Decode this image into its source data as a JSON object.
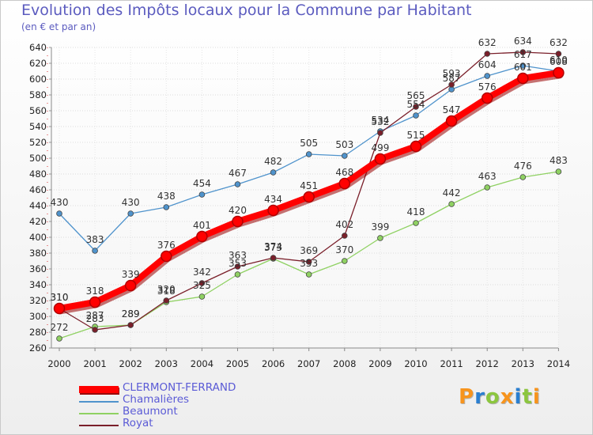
{
  "chart_data": {
    "type": "line",
    "title": "Evolution des Impôts locaux pour la Commune par Habitant",
    "subtitle": "(en € et par an)",
    "xlabel": "",
    "ylabel": "",
    "x": [
      "2000",
      "2001",
      "2002",
      "2003",
      "2004",
      "2005",
      "2006",
      "2007",
      "2008",
      "2009",
      "2010",
      "2011",
      "2012",
      "2013",
      "2014"
    ],
    "ylim": [
      260,
      640
    ],
    "ytick_step": 20,
    "grid": true,
    "legend_position": "bottom-left",
    "series": [
      {
        "name": "Chamalières",
        "color": "#4f93cc",
        "values": [
          430,
          383,
          430,
          438,
          454,
          467,
          482,
          505,
          503,
          534,
          554,
          587,
          604,
          617,
          610
        ]
      },
      {
        "name": "Beaumont",
        "color": "#8fd162",
        "values": [
          272,
          287,
          289,
          318,
          325,
          353,
          373,
          353,
          370,
          399,
          418,
          442,
          463,
          476,
          483
        ]
      },
      {
        "name": "Royat",
        "color": "#7a1f2a",
        "values": [
          310,
          283,
          289,
          320,
          342,
          363,
          374,
          369,
          402,
          532,
          565,
          593,
          632,
          634,
          632
        ]
      },
      {
        "name": "CLERMONT-FERRAND",
        "color": "#ff0000",
        "values": [
          310,
          318,
          339,
          376,
          401,
          420,
          434,
          451,
          468,
          499,
          515,
          547,
          576,
          601,
          608
        ]
      }
    ]
  },
  "legend": {
    "items": [
      {
        "label": "CLERMONT-FERRAND",
        "color": "#ff0000"
      },
      {
        "label": "Chamalières",
        "color": "#4f93cc"
      },
      {
        "label": "Beaumont",
        "color": "#8fd162"
      },
      {
        "label": "Royat",
        "color": "#7a1f2a"
      }
    ]
  },
  "logo": {
    "letters": [
      "P",
      "r",
      "o",
      "x",
      "i",
      "t",
      "i"
    ],
    "colors": [
      "#f7941d",
      "#2b7fd0",
      "#8cc63f",
      "#f7941d",
      "#2b7fd0",
      "#8cc63f",
      "#f7941d"
    ]
  }
}
